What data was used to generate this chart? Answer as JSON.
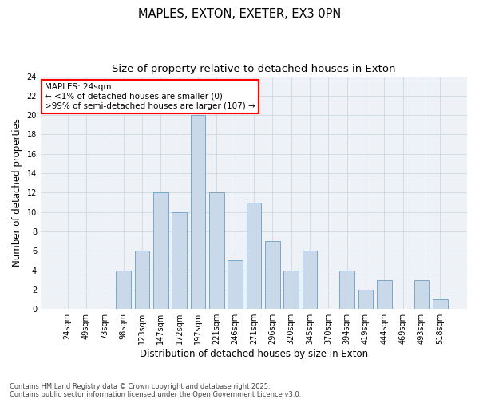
{
  "title": "MAPLES, EXTON, EXETER, EX3 0PN",
  "subtitle": "Size of property relative to detached houses in Exton",
  "xlabel": "Distribution of detached houses by size in Exton",
  "ylabel": "Number of detached properties",
  "categories": [
    "24sqm",
    "49sqm",
    "73sqm",
    "98sqm",
    "123sqm",
    "147sqm",
    "172sqm",
    "197sqm",
    "221sqm",
    "246sqm",
    "271sqm",
    "296sqm",
    "320sqm",
    "345sqm",
    "370sqm",
    "394sqm",
    "419sqm",
    "444sqm",
    "469sqm",
    "493sqm",
    "518sqm"
  ],
  "values": [
    0,
    0,
    0,
    4,
    6,
    12,
    10,
    20,
    12,
    5,
    11,
    7,
    4,
    6,
    0,
    4,
    2,
    3,
    0,
    3,
    1
  ],
  "bar_color": "#c9d9ea",
  "bar_edge_color": "#7aa8c8",
  "annotation_text": "MAPLES: 24sqm\n← <1% of detached houses are smaller (0)\n>99% of semi-detached houses are larger (107) →",
  "ylim": [
    0,
    24
  ],
  "yticks": [
    0,
    2,
    4,
    6,
    8,
    10,
    12,
    14,
    16,
    18,
    20,
    22,
    24
  ],
  "grid_color": "#d0d8e0",
  "background_color": "#eef2f7",
  "footnote": "Contains HM Land Registry data © Crown copyright and database right 2025.\nContains public sector information licensed under the Open Government Licence v3.0.",
  "title_fontsize": 10.5,
  "subtitle_fontsize": 9.5,
  "ylabel_fontsize": 8.5,
  "xlabel_fontsize": 8.5,
  "tick_fontsize": 7,
  "annotation_fontsize": 7.5,
  "footnote_fontsize": 6
}
